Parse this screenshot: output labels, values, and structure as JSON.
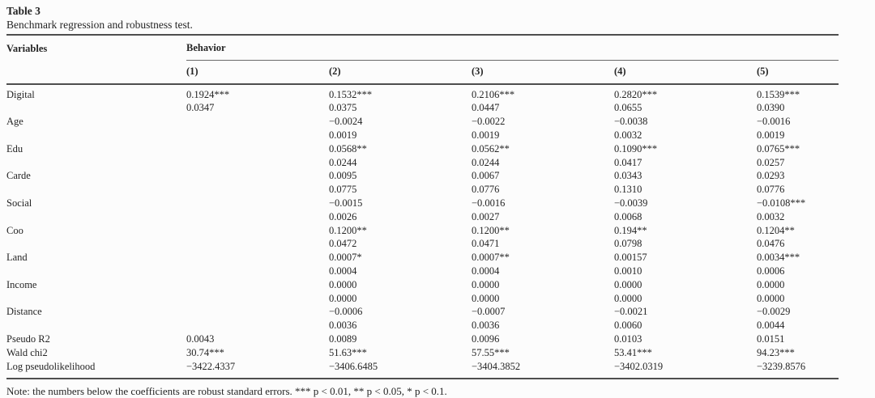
{
  "table": {
    "label": "Table 3",
    "caption": "Benchmark regression and robustness test.",
    "header": {
      "variables": "Variables",
      "group": "Behavior",
      "columns": [
        "(1)",
        "(2)",
        "(3)",
        "(4)",
        "(5)"
      ]
    },
    "rows": [
      {
        "cells": [
          "Digital",
          "0.1924***",
          "0.1532***",
          "0.2106***",
          "0.2820***",
          "0.1539***"
        ]
      },
      {
        "cells": [
          "",
          "0.0347",
          "0.0375",
          "0.0447",
          "0.0655",
          "0.0390"
        ]
      },
      {
        "cells": [
          "Age",
          "",
          "−0.0024",
          "−0.0022",
          "−0.0038",
          "−0.0016"
        ]
      },
      {
        "cells": [
          "",
          "",
          "0.0019",
          "0.0019",
          "0.0032",
          "0.0019"
        ]
      },
      {
        "cells": [
          "Edu",
          "",
          "0.0568**",
          "0.0562**",
          "0.1090***",
          "0.0765***"
        ]
      },
      {
        "cells": [
          "",
          "",
          "0.0244",
          "0.0244",
          "0.0417",
          "0.0257"
        ]
      },
      {
        "cells": [
          "Carde",
          "",
          "0.0095",
          "0.0067",
          "0.0343",
          "0.0293"
        ]
      },
      {
        "cells": [
          "",
          "",
          "0.0775",
          "0.0776",
          "0.1310",
          "0.0776"
        ]
      },
      {
        "cells": [
          "Social",
          "",
          "−0.0015",
          "−0.0016",
          "−0.0039",
          "−0.0108***"
        ]
      },
      {
        "cells": [
          "",
          "",
          "0.0026",
          "0.0027",
          "0.0068",
          "0.0032"
        ]
      },
      {
        "cells": [
          "Coo",
          "",
          "0.1200**",
          "0.1200**",
          "0.194**",
          "0.1204**"
        ]
      },
      {
        "cells": [
          "",
          "",
          "0.0472",
          "0.0471",
          "0.0798",
          "0.0476"
        ]
      },
      {
        "cells": [
          "Land",
          "",
          "0.0007*",
          "0.0007**",
          "0.00157",
          "0.0034***"
        ]
      },
      {
        "cells": [
          "",
          "",
          "0.0004",
          "0.0004",
          "0.0010",
          "0.0006"
        ]
      },
      {
        "cells": [
          "Income",
          "",
          "0.0000",
          "0.0000",
          "0.0000",
          "0.0000"
        ]
      },
      {
        "cells": [
          "",
          "",
          "0.0000",
          "0.0000",
          "0.0000",
          "0.0000"
        ]
      },
      {
        "cells": [
          "Distance",
          "",
          "−0.0006",
          "−0.0007",
          "−0.0021",
          "−0.0029"
        ]
      },
      {
        "cells": [
          "",
          "",
          "0.0036",
          "0.0036",
          "0.0060",
          "0.0044"
        ]
      },
      {
        "cells": [
          "Pseudo R2",
          "0.0043",
          "0.0089",
          "0.0096",
          "0.0103",
          "0.0151"
        ]
      },
      {
        "cells": [
          "Wald chi2",
          "30.74***",
          "51.63***",
          "57.55***",
          "53.41***",
          "94.23***"
        ]
      },
      {
        "cells": [
          "Log pseudolikelihood",
          "−3422.4337",
          "−3406.6485",
          "−3404.3852",
          "−3402.0319",
          "−3239.8576"
        ]
      }
    ],
    "note": "Note: the numbers below the coefficients are robust standard errors. *** p < 0.01, ** p < 0.05, * p < 0.1."
  }
}
